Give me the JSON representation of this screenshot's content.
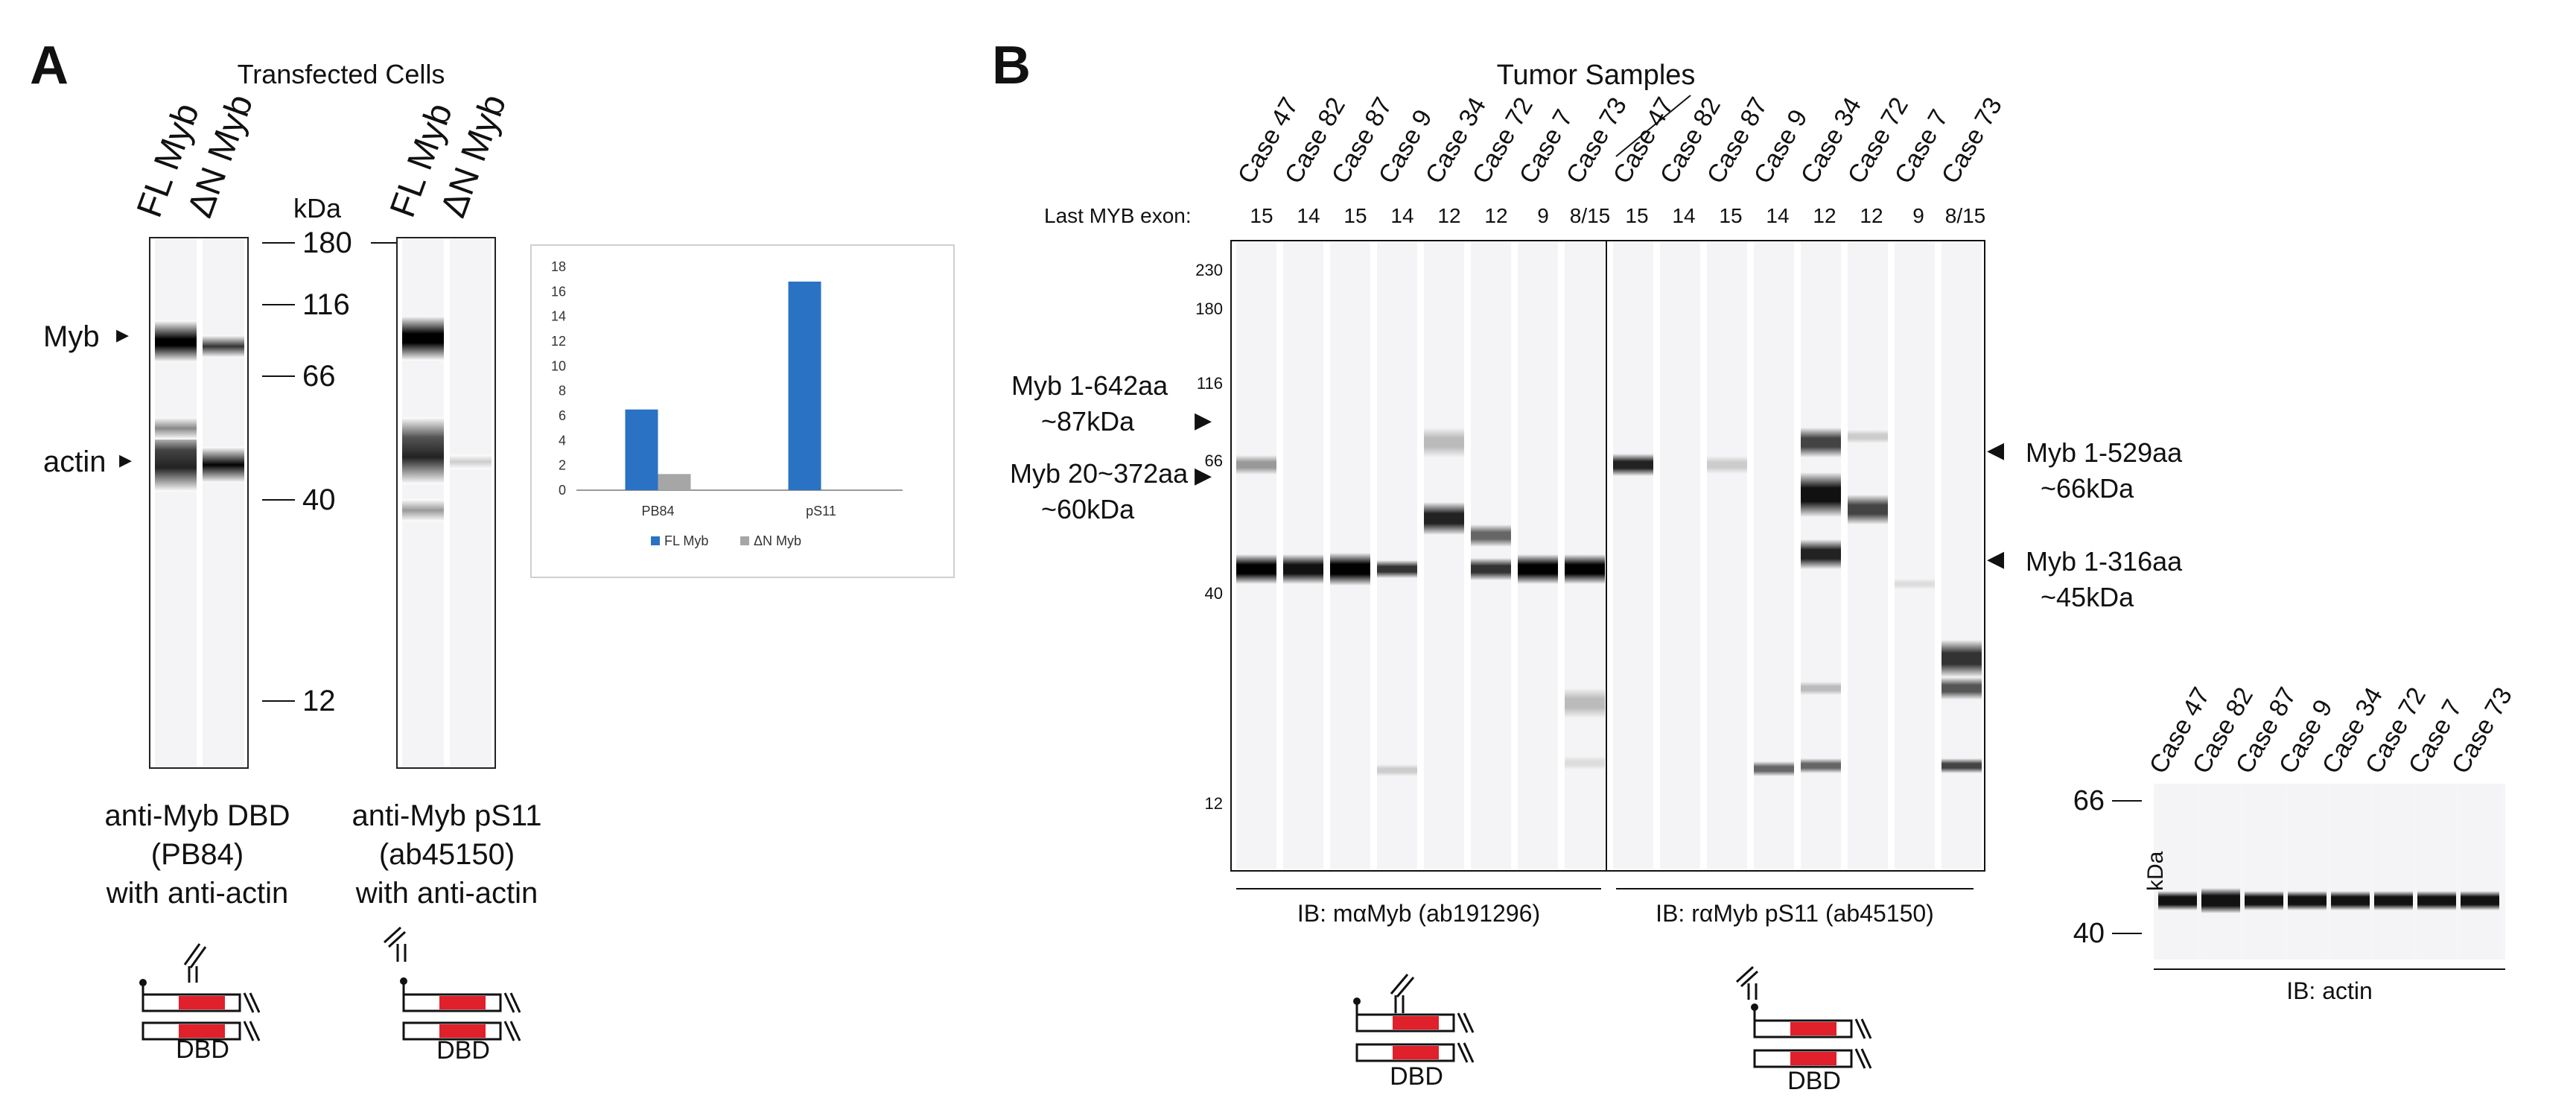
{
  "panelA": {
    "letter": "A",
    "title": "Transfected Cells",
    "lane_labels": [
      "FL Myb",
      "ΔN Myb"
    ],
    "kda_label": "kDa",
    "markers": [
      "180",
      "116",
      "66",
      "40",
      "12"
    ],
    "band_labels": {
      "myb": "Myb",
      "actin": "actin"
    },
    "blot1_caption": [
      "anti-Myb DBD",
      "(PB84)",
      "with anti-actin"
    ],
    "blot2_caption": [
      "anti-Myb pS11",
      "(ab45150)",
      "with anti-actin"
    ],
    "dbd_label": "DBD"
  },
  "inset_chart": {
    "chart_data": {
      "type": "bar",
      "categories": [
        "PB84",
        "pS11"
      ],
      "series": [
        {
          "name": "FL Myb",
          "values": [
            6.5,
            16.8
          ],
          "color": "#2a72c4"
        },
        {
          "name": "ΔN Myb",
          "values": [
            1.3,
            0
          ],
          "color": "#a6a6a6"
        }
      ],
      "ylim": [
        0,
        18
      ],
      "yticks": [
        "0",
        "2",
        "4",
        "6",
        "8",
        "10",
        "12",
        "14",
        "16",
        "18"
      ],
      "legend": "bottom"
    }
  },
  "panelB": {
    "letter": "B",
    "title": "Tumor Samples",
    "last_exon_label": "Last MYB exon:",
    "cases": [
      "Case 47",
      "Case 82",
      "Case 87",
      "Case 9",
      "Case 34",
      "Case 72",
      "Case 7",
      "Case 73"
    ],
    "exons": [
      "15",
      "14",
      "15",
      "14",
      "12",
      "12",
      "9",
      "8/15"
    ],
    "markers": [
      "230",
      "180",
      "116",
      "66",
      "40",
      "12"
    ],
    "left_annotations": [
      {
        "line1": "Myb 1-642aa",
        "line2": "~87kDa"
      },
      {
        "line1": "Myb 20~372aa",
        "line2": "~60kDa"
      }
    ],
    "right_annotations": [
      {
        "line1": "Myb 1-529aa",
        "line2": "~66kDa"
      },
      {
        "line1": "Myb 1-316aa",
        "line2": "~45kDa"
      }
    ],
    "ib_left": "IB: mαMyb  (ab191296)",
    "ib_right": "IB: rαMyb pS11 (ab45150)",
    "dbd_label": "DBD"
  },
  "actin_panel": {
    "cases": [
      "Case 47",
      "Case 82",
      "Case 87",
      "Case 9",
      "Case 34",
      "Case 72",
      "Case 7",
      "Case 73"
    ],
    "marker_top": "66",
    "marker_bottom": "40",
    "kda_label": "kDa",
    "ib_label": "IB: actin"
  },
  "colors": {
    "bar_fl": "#2a72c4",
    "bar_dn": "#a6a6a6",
    "dbd_red": "#e0202a"
  }
}
